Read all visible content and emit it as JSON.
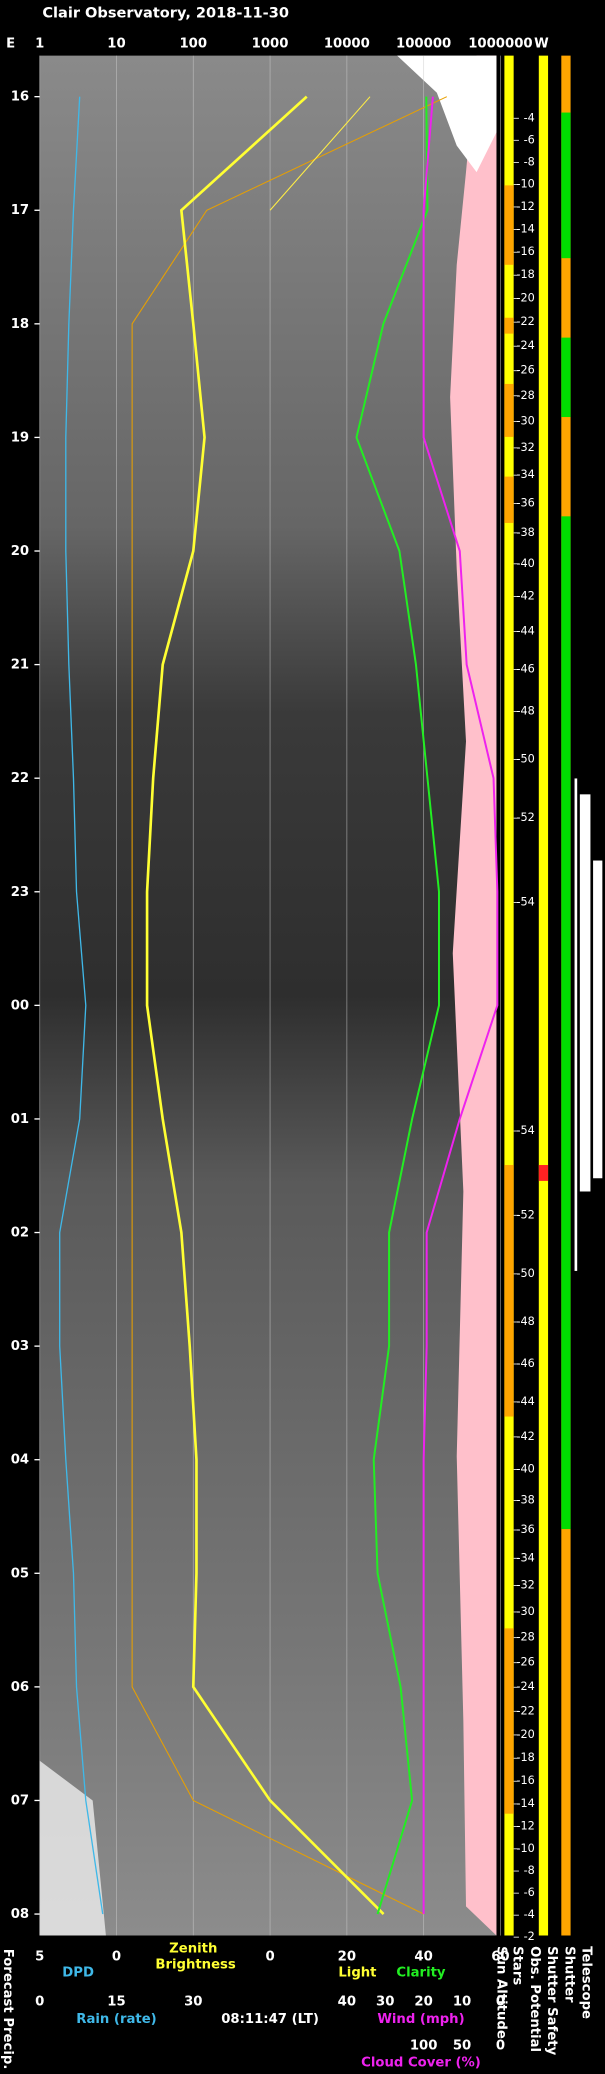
{
  "chart_data": {
    "type": "line",
    "title": "Clair Observatory, 2018-11-30",
    "east_label": "E",
    "west_label": "W",
    "categories": [
      "16",
      "17",
      "18",
      "19",
      "20",
      "21",
      "22",
      "23",
      "00",
      "01",
      "02",
      "03",
      "04",
      "05",
      "06",
      "07",
      "08"
    ],
    "xscale": "log",
    "xlim": [
      1,
      1000000
    ],
    "xticks": [
      1,
      10,
      100,
      1000,
      10000,
      100000,
      1000000
    ],
    "grid": true,
    "xlabel": "Zenith Brightness",
    "x2label": "DPD",
    "x2lim": [
      5,
      0
    ],
    "x2ticks": [
      5,
      0
    ],
    "x3label": "Rain (rate)",
    "x3lim": [
      0,
      30
    ],
    "x3ticks": [
      0,
      15,
      30
    ],
    "x4labels": [
      "Light",
      "Clarity"
    ],
    "x4lim": [
      0,
      60
    ],
    "x4ticks": [
      0,
      20,
      40,
      60
    ],
    "x5label": "Wind (mph)",
    "x5lim": [
      40,
      0
    ],
    "x5ticks": [
      40,
      30,
      20,
      10,
      0
    ],
    "x6label": "Cloud Cover (%)",
    "x6lim": [
      100,
      0
    ],
    "x6ticks": [
      100,
      50,
      0
    ],
    "timestamp": "08:11:47 (LT)",
    "altitude_ticks": [
      -4,
      -6,
      -8,
      -10,
      -12,
      -14,
      -16,
      -18,
      -20,
      -22,
      -24,
      -26,
      -28,
      -30,
      -32,
      -34,
      -36,
      -38,
      -40,
      -42,
      -44,
      -46,
      -48,
      -50,
      -52,
      -54,
      -54,
      -52,
      -50,
      -48,
      -46,
      -44,
      -42,
      -40,
      -38,
      -36,
      -34,
      -32,
      -30,
      -28,
      -26,
      -24,
      -22,
      -20,
      -18,
      -16,
      -14,
      -12,
      -10,
      -8,
      -6,
      -4,
      -2
    ],
    "status_labels": [
      "Sun Altitude",
      "Stars",
      "Obs. Potential",
      "Shutter Safety",
      "Shutter",
      "Telescope"
    ],
    "forecast_label": "Forecast Precip.",
    "series": [
      {
        "color": "#e8a000",
        "axis": "x",
        "width": 0.8,
        "values": [
          200000,
          150,
          16,
          16,
          16,
          16,
          16,
          16,
          16,
          16,
          16,
          16,
          16,
          16,
          16,
          100,
          100000
        ]
      },
      {
        "color": "#ffee44",
        "axis": "x",
        "width": 0.8,
        "values": [
          20000,
          1000,
          null,
          null,
          null,
          null,
          null,
          null,
          null,
          null,
          null,
          null,
          null,
          null,
          null,
          1000,
          30000
        ]
      },
      {
        "color": "#3fb8e8",
        "axis": "x2",
        "width": 1,
        "values": [
          2.4,
          2.8,
          3.1,
          3.3,
          3.3,
          3.1,
          2.8,
          2.6,
          2.0,
          2.4,
          3.7,
          3.7,
          3.3,
          2.8,
          2.6,
          2.0,
          0.9
        ]
      },
      {
        "color": "#ffff33",
        "axis": "x",
        "width": 2,
        "values": [
          3000,
          70,
          100,
          140,
          100,
          40,
          30,
          25,
          25,
          40,
          70,
          90,
          110,
          110,
          100,
          1000,
          30000
        ]
      },
      {
        "color": "#22ee22",
        "axis": "x4",
        "width": 1.5,
        "values": [
          40.7,
          41,
          29.5,
          22.5,
          33.7,
          38,
          41,
          44,
          44,
          37,
          31,
          31,
          27,
          28,
          34,
          37,
          28
        ]
      },
      {
        "color": "#ee22ee",
        "axis": "x6",
        "width": 1.5,
        "values": [
          88,
          100,
          100,
          100,
          53,
          44,
          9,
          4,
          4,
          53,
          96,
          96,
          100,
          100,
          100,
          100,
          100
        ]
      }
    ]
  }
}
